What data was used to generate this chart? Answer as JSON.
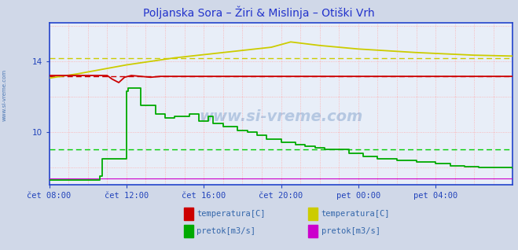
{
  "title": "Poljanska Sora – Žiri & Mislinja – Otiški Vrh",
  "title_color": "#2233cc",
  "title_fontsize": 10,
  "fig_bg": "#d0d8e8",
  "plot_bg": "#e8eef8",
  "border_color": "#2244cc",
  "ylim": [
    7.0,
    16.2
  ],
  "xlim": [
    0,
    480
  ],
  "xtick_labels": [
    "čet 08:00",
    "čet 12:00",
    "čet 16:00",
    "čet 20:00",
    "pet 00:00",
    "pet 04:00"
  ],
  "xtick_positions": [
    0,
    80,
    160,
    240,
    320,
    400
  ],
  "ytick_labels": [
    "10",
    "14"
  ],
  "ytick_positions": [
    10,
    14
  ],
  "red_avg": 13.15,
  "yellow_avg": 14.2,
  "green_avg": 9.0,
  "watermark": "www.si-vreme.com",
  "left_watermark": "www.si-vreme.com",
  "legend": [
    {
      "label": "temperatura[C]",
      "color": "#cc0000"
    },
    {
      "label": "pretok[m3/s]",
      "color": "#00aa00"
    },
    {
      "label": "temperatura[C]",
      "color": "#cccc00"
    },
    {
      "label": "pretok[m3/s]",
      "color": "#cc00cc"
    }
  ],
  "red_x": [
    0,
    60,
    65,
    72,
    78,
    85,
    95,
    105,
    115,
    480
  ],
  "red_y": [
    13.2,
    13.2,
    13.0,
    12.8,
    13.1,
    13.2,
    13.15,
    13.1,
    13.15,
    13.15
  ],
  "yellow_x": [
    0,
    30,
    80,
    130,
    180,
    230,
    250,
    280,
    320,
    380,
    440,
    480
  ],
  "yellow_y": [
    13.05,
    13.3,
    13.8,
    14.2,
    14.5,
    14.8,
    15.1,
    14.9,
    14.7,
    14.5,
    14.35,
    14.3
  ],
  "green_x": [
    0,
    50,
    52,
    55,
    80,
    82,
    95,
    110,
    120,
    130,
    145,
    155,
    165,
    170,
    180,
    195,
    205,
    215,
    225,
    240,
    255,
    265,
    275,
    285,
    295,
    310,
    325,
    340,
    360,
    380,
    400,
    415,
    430,
    445,
    460,
    480
  ],
  "green_y": [
    7.3,
    7.3,
    7.5,
    8.5,
    12.3,
    12.5,
    11.5,
    11.0,
    10.8,
    10.9,
    11.0,
    10.6,
    10.9,
    10.5,
    10.3,
    10.1,
    10.0,
    9.8,
    9.6,
    9.4,
    9.3,
    9.2,
    9.1,
    9.0,
    9.0,
    8.8,
    8.6,
    8.5,
    8.4,
    8.3,
    8.2,
    8.1,
    8.05,
    8.0,
    8.0,
    7.95
  ],
  "magenta_y": 7.35
}
